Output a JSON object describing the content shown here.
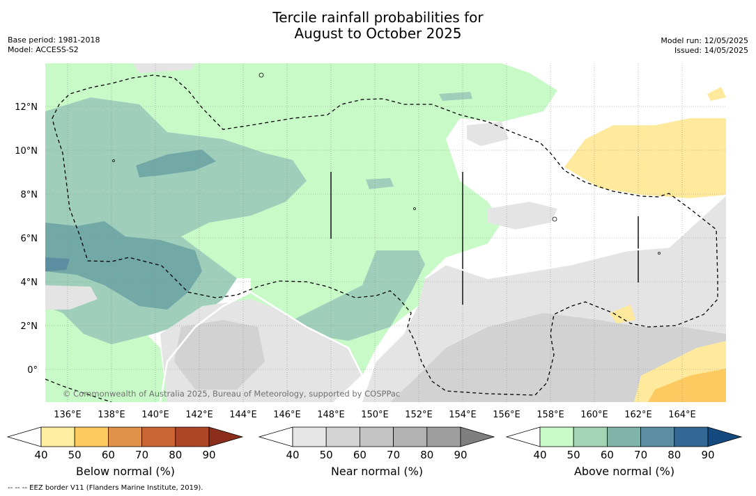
{
  "title_line1": "Tercile rainfall probabilities for",
  "title_line2": "August to October 2025",
  "base_period": "Base period: 1981-2018",
  "model": "Model: ACCESS-S2",
  "model_run": "Model run: 12/05/2025",
  "issued": "Issued: 14/05/2025",
  "copyright": "© Commonwealth of Australia 2025, Bureau of Meteorology, supported by COSPPac",
  "footnote": "--  --  -- EEZ border V11 (Flanders Marine Institute, 2019).",
  "lat_ticks": [
    "12°N",
    "10°N",
    "8°N",
    "6°N",
    "4°N",
    "2°N",
    "0°"
  ],
  "lon_ticks": [
    "136°E",
    "138°E",
    "140°E",
    "142°E",
    "144°E",
    "146°E",
    "148°E",
    "150°E",
    "152°E",
    "154°E",
    "156°E",
    "158°E",
    "160°E",
    "162°E",
    "164°E"
  ],
  "colorbars": [
    {
      "label": "Below normal (%)",
      "ticks": [
        "40",
        "50",
        "60",
        "70",
        "80",
        "90"
      ],
      "colors": [
        "#ffeea0",
        "#fdca62",
        "#e0924a",
        "#cc6534",
        "#ae4526",
        "#8c2e1c"
      ]
    },
    {
      "label": "Near normal (%)",
      "ticks": [
        "40",
        "50",
        "60",
        "70",
        "80",
        "90"
      ],
      "colors": [
        "#e6e6e6",
        "#d4d4d4",
        "#c4c4c4",
        "#b2b2b2",
        "#9e9e9e",
        "#7f7f7f"
      ]
    },
    {
      "label": "Above normal (%)",
      "ticks": [
        "40",
        "50",
        "60",
        "70",
        "80",
        "90"
      ],
      "colors": [
        "#c8fac8",
        "#a3d4b4",
        "#80b4a8",
        "#5a8ea0",
        "#336894",
        "#144a80"
      ]
    }
  ],
  "category_colors": {
    "above_40_50": "#c8fac8",
    "above_50_60": "#9fcfbb",
    "above_60_70": "#72a8a6",
    "above_70_80": "#5a8ea0",
    "near_40_50": "#e4e4e4",
    "near_50_60": "#d2d2d2",
    "below_40_50": "#ffe99c",
    "below_50_60": "#fdca62"
  }
}
